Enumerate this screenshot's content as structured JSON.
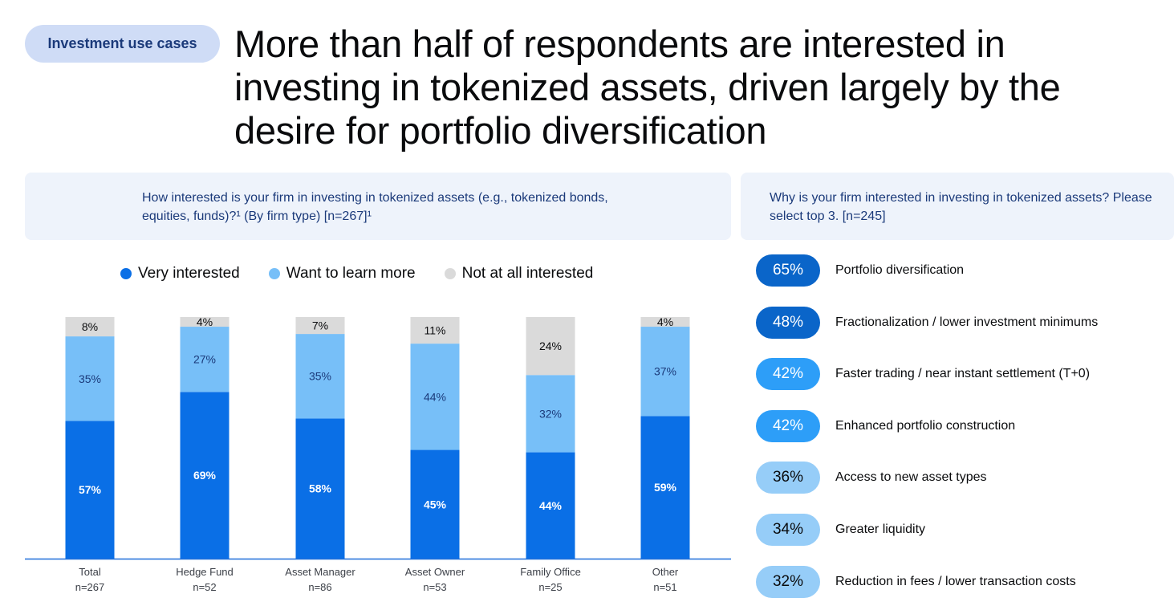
{
  "header": {
    "tag": "Investment use cases",
    "headline": "More than half of respondents are interested in investing in tokenized assets, driven largely by the desire for portfolio diversification"
  },
  "left_panel": {
    "question": "How interested is your firm in investing in tokenized assets (e.g., tokenized bonds, equities, funds)?¹ (By firm type) [n=267]¹"
  },
  "right_panel": {
    "question": "Why is your firm interested in investing in tokenized assets? Please select top 3. [n=245]"
  },
  "legend": [
    {
      "label": "Very interested",
      "color": "#0a6fe6"
    },
    {
      "label": "Want to learn more",
      "color": "#77bff8"
    },
    {
      "label": "Not at all interested",
      "color": "#dadada"
    }
  ],
  "chart_data": [
    {
      "type": "bar",
      "stacked": true,
      "title": "",
      "xlabel": "",
      "ylabel": "",
      "ylim": [
        0,
        100
      ],
      "grid": false,
      "categories": [
        "Total",
        "Hedge Fund",
        "Asset Manager",
        "Asset Owner",
        "Family Office",
        "Other"
      ],
      "category_n": [
        "n=267",
        "n=52",
        "n=86",
        "n=53",
        "n=25",
        "n=51"
      ],
      "series": [
        {
          "name": "Very interested",
          "color": "#0a6fe6",
          "values": [
            57,
            69,
            58,
            45,
            44,
            59
          ],
          "labels": [
            "57%",
            "69%",
            "58%",
            "45%",
            "44%",
            "59%"
          ]
        },
        {
          "name": "Want to learn more",
          "color": "#77bff8",
          "values": [
            35,
            27,
            35,
            44,
            32,
            37
          ],
          "labels": [
            "35%",
            "27%",
            "35%",
            "44%",
            "32%",
            "37%"
          ]
        },
        {
          "name": "Not at all interested",
          "color": "#dadada",
          "values": [
            8,
            4,
            7,
            11,
            24,
            4
          ],
          "labels": [
            "8%",
            "4%",
            "7%",
            "11%",
            "24%",
            "4%"
          ]
        }
      ]
    },
    {
      "type": "bar",
      "orientation": "horizontal",
      "title": "",
      "categories": [
        "Portfolio diversification",
        "Fractionalization / lower investment minimums",
        "Faster trading / near instant settlement (T+0)",
        "Enhanced portfolio construction",
        "Access to new asset types",
        "Greater liquidity",
        "Reduction in fees / lower transaction costs"
      ],
      "values": [
        65,
        48,
        42,
        42,
        36,
        34,
        32
      ],
      "labels": [
        "65%",
        "48%",
        "42%",
        "42%",
        "36%",
        "34%",
        "32%"
      ],
      "pill_colors": [
        "#0a65c9",
        "#0a65c9",
        "#2d9ef8",
        "#2d9ef8",
        "#96cdf8",
        "#96cdf8",
        "#96cdf8"
      ],
      "pill_text_colors": [
        "#ffffff",
        "#ffffff",
        "#ffffff",
        "#ffffff",
        "#0a0b0d",
        "#0a0b0d",
        "#0a0b0d"
      ]
    }
  ]
}
